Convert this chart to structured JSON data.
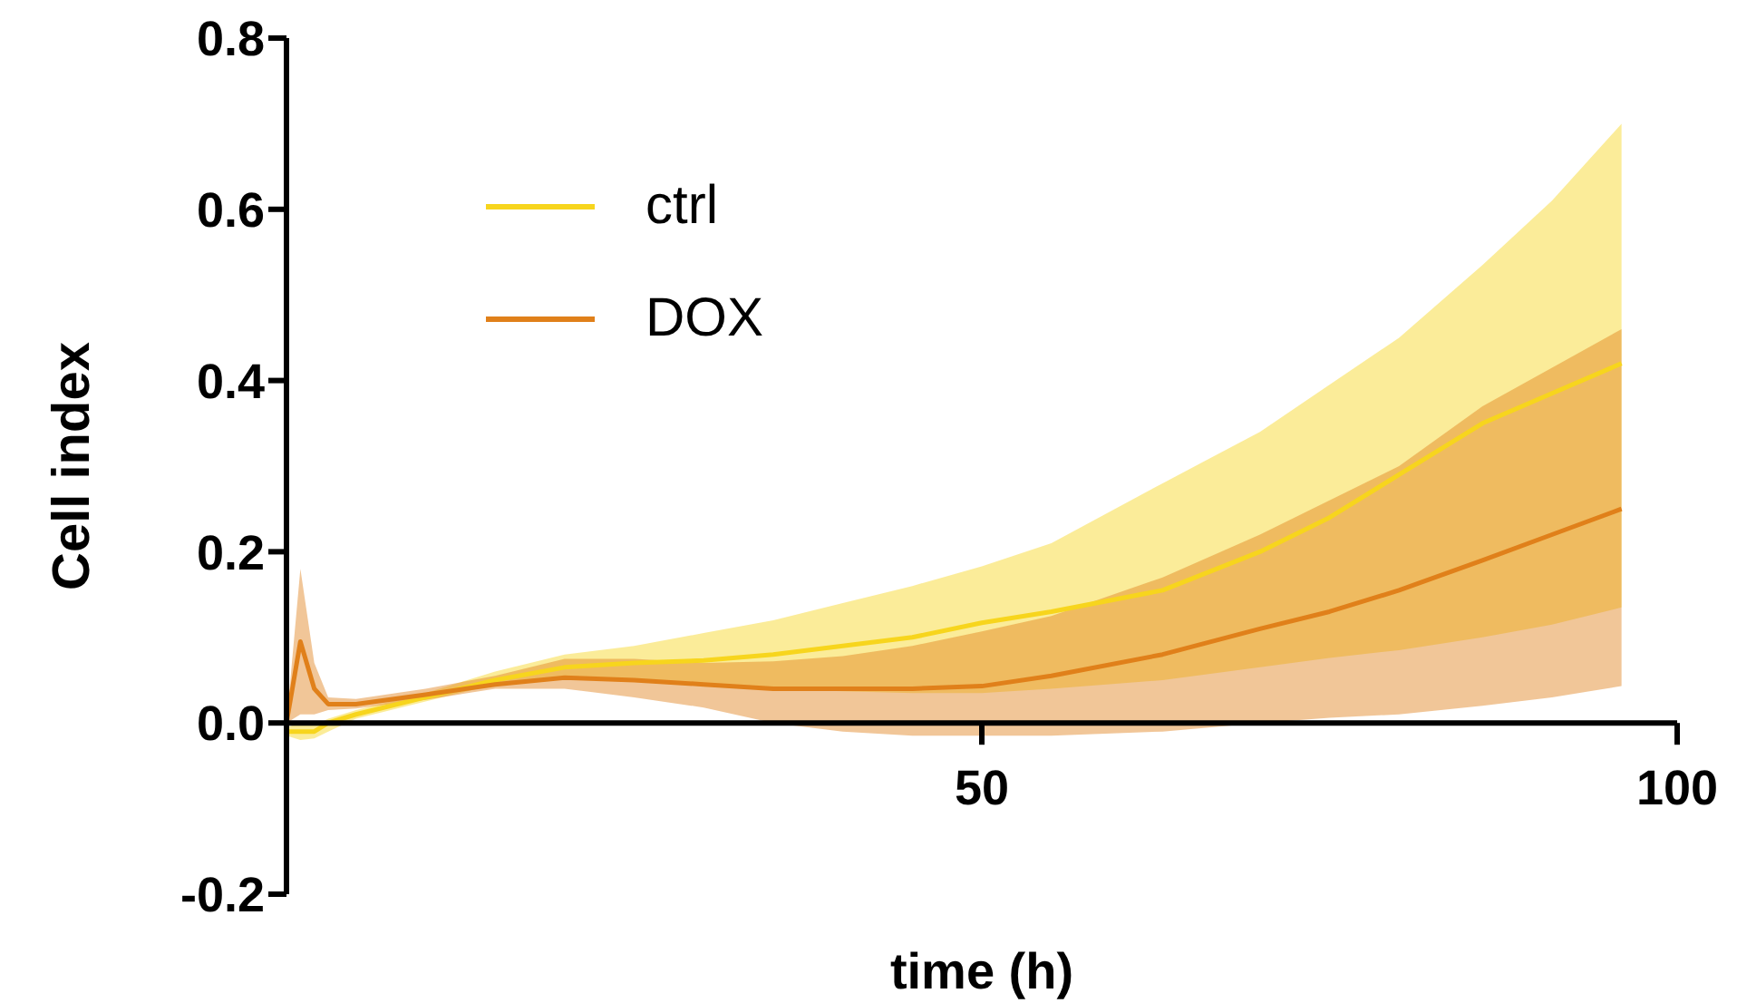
{
  "chart_data": {
    "type": "line",
    "xlabel": "time (h)",
    "ylabel": "Cell index",
    "x": [
      0,
      1,
      2,
      3,
      5,
      10,
      15,
      20,
      25,
      30,
      35,
      40,
      45,
      50,
      55,
      63,
      70,
      75,
      80,
      86,
      91,
      96
    ],
    "xlim": [
      0,
      100
    ],
    "xticks": [
      50,
      100
    ],
    "ylim": [
      -0.2,
      0.8
    ],
    "yticks": [
      -0.2,
      {
        "value": 0,
        "label": "0.0"
      },
      0.2,
      0.4,
      0.6,
      0.8
    ],
    "series": [
      {
        "name": "ctrl",
        "color": "#f7d51d",
        "values": [
          -0.01,
          -0.01,
          -0.01,
          0.0,
          0.01,
          0.03,
          0.05,
          0.065,
          0.07,
          0.073,
          0.08,
          0.09,
          0.1,
          0.117,
          0.13,
          0.155,
          0.2,
          0.24,
          0.29,
          0.35,
          0.385,
          0.42
        ],
        "lower": [
          -0.015,
          -0.02,
          -0.018,
          -0.01,
          0.005,
          0.025,
          0.045,
          0.055,
          0.05,
          0.045,
          0.04,
          0.037,
          0.035,
          0.035,
          0.04,
          0.05,
          0.065,
          0.076,
          0.085,
          0.1,
          0.115,
          0.135
        ],
        "upper": [
          -0.005,
          0.0,
          -0.003,
          0.005,
          0.015,
          0.035,
          0.06,
          0.08,
          0.09,
          0.105,
          0.12,
          0.14,
          0.16,
          0.183,
          0.21,
          0.28,
          0.34,
          0.395,
          0.45,
          0.535,
          0.61,
          0.7
        ]
      },
      {
        "name": "DOX",
        "color": "#e0801a",
        "values": [
          0.0,
          0.095,
          0.04,
          0.022,
          0.022,
          0.033,
          0.045,
          0.053,
          0.05,
          0.045,
          0.04,
          0.04,
          0.04,
          0.043,
          0.055,
          0.08,
          0.11,
          0.13,
          0.155,
          0.19,
          0.22,
          0.25
        ],
        "lower": [
          0.0,
          0.01,
          0.01,
          0.015,
          0.017,
          0.027,
          0.04,
          0.04,
          0.03,
          0.018,
          0.0,
          -0.01,
          -0.015,
          -0.015,
          -0.015,
          -0.01,
          0.0,
          0.006,
          0.01,
          0.02,
          0.03,
          0.043
        ],
        "upper": [
          0.0,
          0.18,
          0.07,
          0.03,
          0.028,
          0.04,
          0.055,
          0.075,
          0.075,
          0.07,
          0.072,
          0.078,
          0.09,
          0.107,
          0.125,
          0.17,
          0.22,
          0.26,
          0.3,
          0.37,
          0.415,
          0.46
        ]
      }
    ],
    "legend": "top left",
    "grid": false,
    "marker": "none",
    "line_style": "solid"
  }
}
